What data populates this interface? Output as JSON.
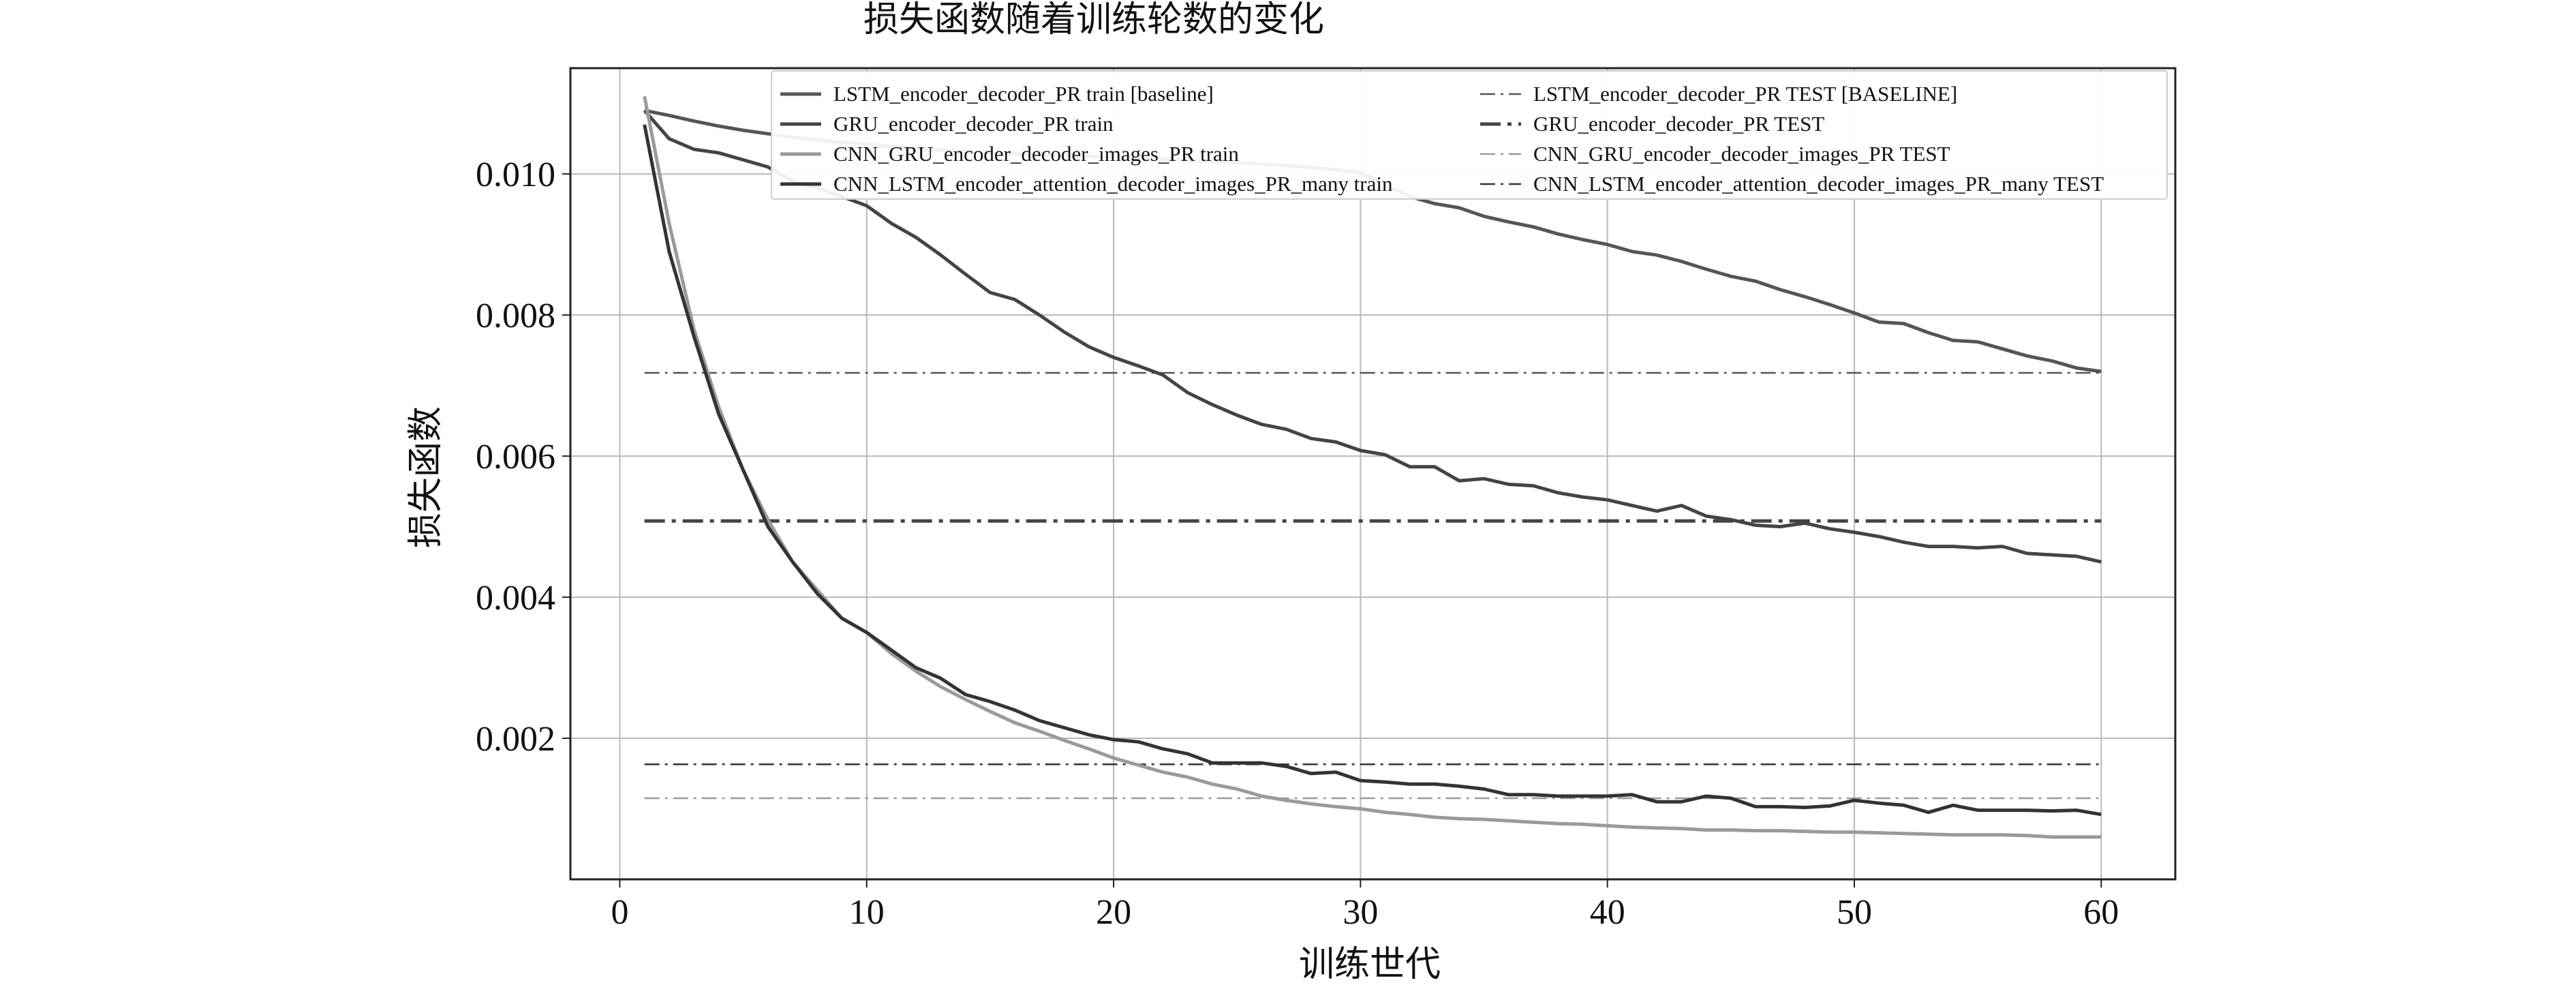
{
  "chart_data": {
    "type": "line",
    "title": "损失函数随着训练轮数的变化",
    "xlabel": "训练世代",
    "ylabel": "损失函数",
    "xlim": [
      -2,
      63
    ],
    "ylim": [
      0.0,
      0.0115
    ],
    "xticks": [
      0,
      10,
      20,
      30,
      40,
      50,
      60
    ],
    "xtick_labels": [
      "0",
      "10",
      "20",
      "30",
      "40",
      "50",
      "60"
    ],
    "yticks": [
      0.002,
      0.004,
      0.006,
      0.008,
      0.01
    ],
    "ytick_labels": [
      "0.002",
      "0.004",
      "0.006",
      "0.008",
      "0.010"
    ],
    "grid": true,
    "legend_position": "top-right",
    "series": [
      {
        "name": "LSTM_encoder_decoder_PR train [baseline]",
        "style": "solid",
        "color": "#555555",
        "x": [
          1,
          2,
          3,
          4,
          5,
          6,
          7,
          8,
          9,
          10,
          11,
          12,
          13,
          14,
          15,
          16,
          17,
          18,
          19,
          20,
          21,
          22,
          23,
          24,
          25,
          26,
          27,
          28,
          29,
          30,
          31,
          32,
          33,
          34,
          35,
          36,
          37,
          38,
          39,
          40,
          41,
          42,
          43,
          44,
          45,
          46,
          47,
          48,
          49,
          50,
          51,
          52,
          53,
          54,
          55,
          56,
          57,
          58,
          59,
          60
        ],
        "y": [
          0.0109,
          0.01083,
          0.01075,
          0.01068,
          0.01062,
          0.01057,
          0.01052,
          0.01048,
          0.01045,
          0.01042,
          0.01039,
          0.01036,
          0.01034,
          0.01032,
          0.0103,
          0.01029,
          0.01027,
          0.01026,
          0.01025,
          0.01024,
          0.01023,
          0.01021,
          0.0102,
          0.01018,
          0.01016,
          0.01014,
          0.01012,
          0.01009,
          0.01006,
          0.01002,
          0.00985,
          0.00968,
          0.00958,
          0.00952,
          0.0094,
          0.00932,
          0.00925,
          0.00915,
          0.00907,
          0.009,
          0.0089,
          0.00885,
          0.00876,
          0.00865,
          0.00855,
          0.00848,
          0.00836,
          0.00826,
          0.00815,
          0.00803,
          0.0079,
          0.00788,
          0.00775,
          0.00764,
          0.00762,
          0.00752,
          0.00742,
          0.00735,
          0.00725,
          0.0072
        ]
      },
      {
        "name": "GRU_encoder_decoder_PR train",
        "style": "solid",
        "color": "#444444",
        "x": [
          1,
          2,
          3,
          4,
          5,
          6,
          7,
          8,
          9,
          10,
          11,
          12,
          13,
          14,
          15,
          16,
          17,
          18,
          19,
          20,
          21,
          22,
          23,
          24,
          25,
          26,
          27,
          28,
          29,
          30,
          31,
          32,
          33,
          34,
          35,
          36,
          37,
          38,
          39,
          40,
          41,
          42,
          43,
          44,
          45,
          46,
          47,
          48,
          49,
          50,
          51,
          52,
          53,
          54,
          55,
          56,
          57,
          58,
          59,
          60
        ],
        "y": [
          0.0109,
          0.0105,
          0.01035,
          0.0103,
          0.0102,
          0.0101,
          0.0099,
          0.0098,
          0.00968,
          0.00955,
          0.0093,
          0.0091,
          0.00885,
          0.00858,
          0.00832,
          0.00822,
          0.008,
          0.00776,
          0.00755,
          0.0074,
          0.00728,
          0.00715,
          0.0069,
          0.00673,
          0.00658,
          0.00645,
          0.00638,
          0.00625,
          0.0062,
          0.00608,
          0.00602,
          0.00585,
          0.00585,
          0.00565,
          0.00568,
          0.0056,
          0.00558,
          0.00548,
          0.00542,
          0.00538,
          0.0053,
          0.00522,
          0.0053,
          0.00515,
          0.0051,
          0.00502,
          0.005,
          0.00505,
          0.00497,
          0.00492,
          0.00486,
          0.00478,
          0.00472,
          0.00472,
          0.0047,
          0.00472,
          0.00462,
          0.0046,
          0.00458,
          0.0045
        ]
      },
      {
        "name": "CNN_GRU_encoder_decoder_images_PR train",
        "style": "solid",
        "color": "#9a9a9a",
        "x": [
          1,
          2,
          3,
          4,
          5,
          6,
          7,
          8,
          9,
          10,
          11,
          12,
          13,
          14,
          15,
          16,
          17,
          18,
          19,
          20,
          21,
          22,
          23,
          24,
          25,
          26,
          27,
          28,
          29,
          30,
          31,
          32,
          33,
          34,
          35,
          36,
          37,
          38,
          39,
          40,
          41,
          42,
          43,
          44,
          45,
          46,
          47,
          48,
          49,
          50,
          51,
          52,
          53,
          54,
          55,
          56,
          57,
          58,
          59,
          60
        ],
        "y": [
          0.0111,
          0.0093,
          0.0078,
          0.0067,
          0.0058,
          0.0051,
          0.0045,
          0.0041,
          0.0037,
          0.0035,
          0.0032,
          0.00295,
          0.00273,
          0.00255,
          0.00238,
          0.00222,
          0.0021,
          0.00197,
          0.00185,
          0.00172,
          0.00162,
          0.00152,
          0.00145,
          0.00135,
          0.00128,
          0.00118,
          0.00112,
          0.00107,
          0.00103,
          0.001,
          0.00095,
          0.00092,
          0.00088,
          0.00086,
          0.00085,
          0.00083,
          0.00081,
          0.00079,
          0.00078,
          0.00076,
          0.00074,
          0.00073,
          0.00072,
          0.0007,
          0.0007,
          0.00069,
          0.00069,
          0.00068,
          0.00067,
          0.00067,
          0.00066,
          0.00065,
          0.00064,
          0.00063,
          0.00063,
          0.00063,
          0.00062,
          0.0006,
          0.0006,
          0.0006
        ]
      },
      {
        "name": "CNN_LSTM_encoder_attention_decoder_images_PR_many train",
        "style": "solid",
        "color": "#333333",
        "x": [
          1,
          2,
          3,
          4,
          5,
          6,
          7,
          8,
          9,
          10,
          11,
          12,
          13,
          14,
          15,
          16,
          17,
          18,
          19,
          20,
          21,
          22,
          23,
          24,
          25,
          26,
          27,
          28,
          29,
          30,
          31,
          32,
          33,
          34,
          35,
          36,
          37,
          38,
          39,
          40,
          41,
          42,
          43,
          44,
          45,
          46,
          47,
          48,
          49,
          50,
          51,
          52,
          53,
          54,
          55,
          56,
          57,
          58,
          59,
          60
        ],
        "y": [
          0.0107,
          0.0089,
          0.0077,
          0.0066,
          0.0058,
          0.005,
          0.0045,
          0.00405,
          0.0037,
          0.0035,
          0.00325,
          0.003,
          0.00285,
          0.00262,
          0.00252,
          0.0024,
          0.00225,
          0.00215,
          0.00205,
          0.00198,
          0.00195,
          0.00185,
          0.00178,
          0.00165,
          0.00165,
          0.00165,
          0.0016,
          0.0015,
          0.00152,
          0.0014,
          0.00138,
          0.00135,
          0.00135,
          0.00132,
          0.00128,
          0.0012,
          0.0012,
          0.00118,
          0.00118,
          0.00118,
          0.0012,
          0.0011,
          0.0011,
          0.00118,
          0.00115,
          0.00103,
          0.00103,
          0.00102,
          0.00104,
          0.00112,
          0.00108,
          0.00105,
          0.00095,
          0.00105,
          0.00098,
          0.00098,
          0.00098,
          0.00097,
          0.00098,
          0.00092
        ]
      },
      {
        "name": "LSTM_encoder_decoder_PR TEST [BASELINE]",
        "style": "dashdot-thin",
        "color": "#555555",
        "x": [
          1,
          60
        ],
        "y": [
          0.00718,
          0.00718
        ]
      },
      {
        "name": "GRU_encoder_decoder_PR TEST",
        "style": "dashdot-thick",
        "color": "#444444",
        "x": [
          1,
          60
        ],
        "y": [
          0.00508,
          0.00508
        ]
      },
      {
        "name": "CNN_GRU_encoder_decoder_images_PR TEST",
        "style": "dashdot-thin",
        "color": "#9a9a9a",
        "x": [
          1,
          60
        ],
        "y": [
          0.00115,
          0.00115
        ]
      },
      {
        "name": "CNN_LSTM_encoder_attention_decoder_images_PR_many TEST",
        "style": "dashdot-thin",
        "color": "#333333",
        "x": [
          1,
          60
        ],
        "y": [
          0.00163,
          0.00163
        ]
      }
    ]
  }
}
